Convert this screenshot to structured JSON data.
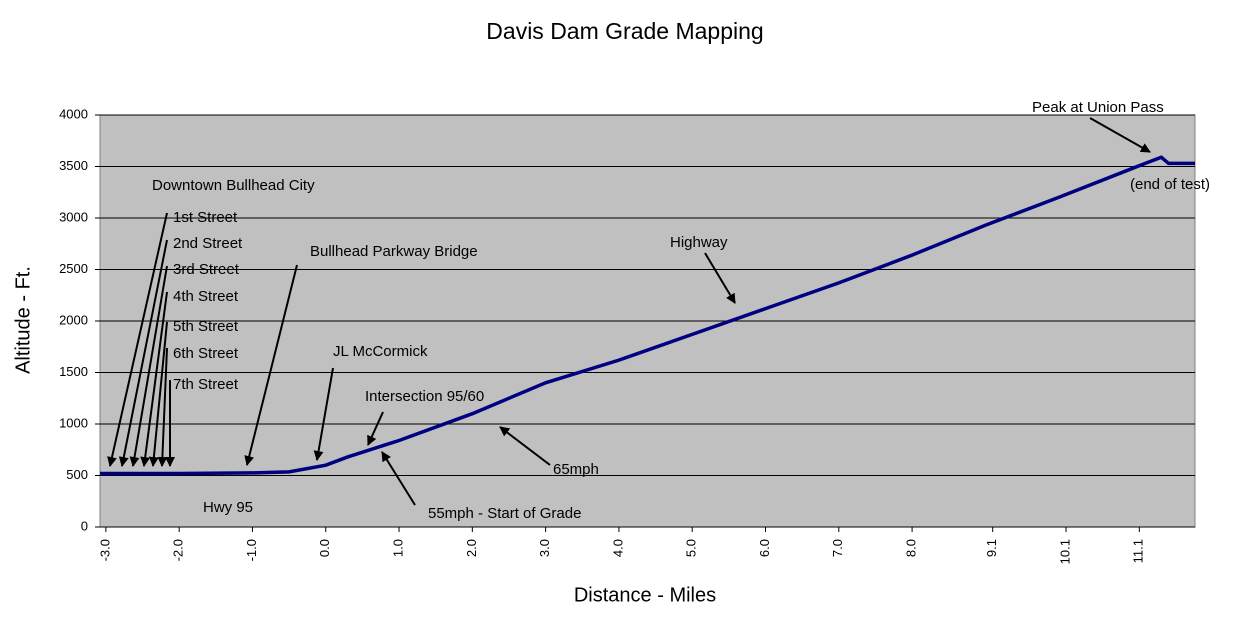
{
  "chart_data": {
    "type": "line",
    "title": "Davis Dam Grade Mapping",
    "x_label": "Distance - Miles",
    "y_label": "Altitude - Ft.",
    "x": [
      -3.08,
      -2.0,
      -1.0,
      -0.5,
      0.0,
      0.3,
      1.0,
      2.0,
      3.0,
      4.0,
      5.0,
      6.0,
      7.0,
      8.0,
      9.0,
      10.0,
      11.0,
      11.4,
      11.5,
      11.86
    ],
    "series": [
      {
        "name": "Altitude",
        "color": "#000080",
        "values": [
          520,
          520,
          525,
          535,
          600,
          680,
          840,
          1100,
          1400,
          1620,
          1870,
          2120,
          2370,
          2640,
          2930,
          3200,
          3480,
          3590,
          3530,
          3530
        ]
      }
    ],
    "xlim": [
      -3.08,
      11.86
    ],
    "ylim": [
      0,
      4000
    ],
    "xticks": [
      {
        "value": -3,
        "label": "-3.0"
      },
      {
        "value": -2,
        "label": "-2.0"
      },
      {
        "value": -1,
        "label": "-1.0"
      },
      {
        "value": 0,
        "label": "0.0"
      },
      {
        "value": 1,
        "label": "1.0"
      },
      {
        "value": 2,
        "label": "2.0"
      },
      {
        "value": 3,
        "label": "3.0"
      },
      {
        "value": 4,
        "label": "4.0"
      },
      {
        "value": 5,
        "label": "5.0"
      },
      {
        "value": 6,
        "label": "6.0"
      },
      {
        "value": 7,
        "label": "7.0"
      },
      {
        "value": 8,
        "label": "8.0"
      },
      {
        "value": 9.1,
        "label": "9.1"
      },
      {
        "value": 10.1,
        "label": "10.1"
      },
      {
        "value": 11.1,
        "label": "11.1"
      }
    ],
    "yticks": [
      0,
      500,
      1000,
      1500,
      2000,
      2500,
      3000,
      3500,
      4000
    ],
    "grid": true,
    "annotations": [
      "Downtown Bullhead City",
      "1st Street",
      "2nd Street",
      "3rd Street",
      "4th Street",
      "5th Street",
      "6th Street",
      "7th Street",
      "Bullhead Parkway Bridge",
      "Highway",
      "JL McCormick",
      "Intersection 95/60",
      "65mph",
      "55mph - Start of Grade",
      "Hwy 95",
      "Peak at Union Pass",
      "(end of test)"
    ]
  }
}
